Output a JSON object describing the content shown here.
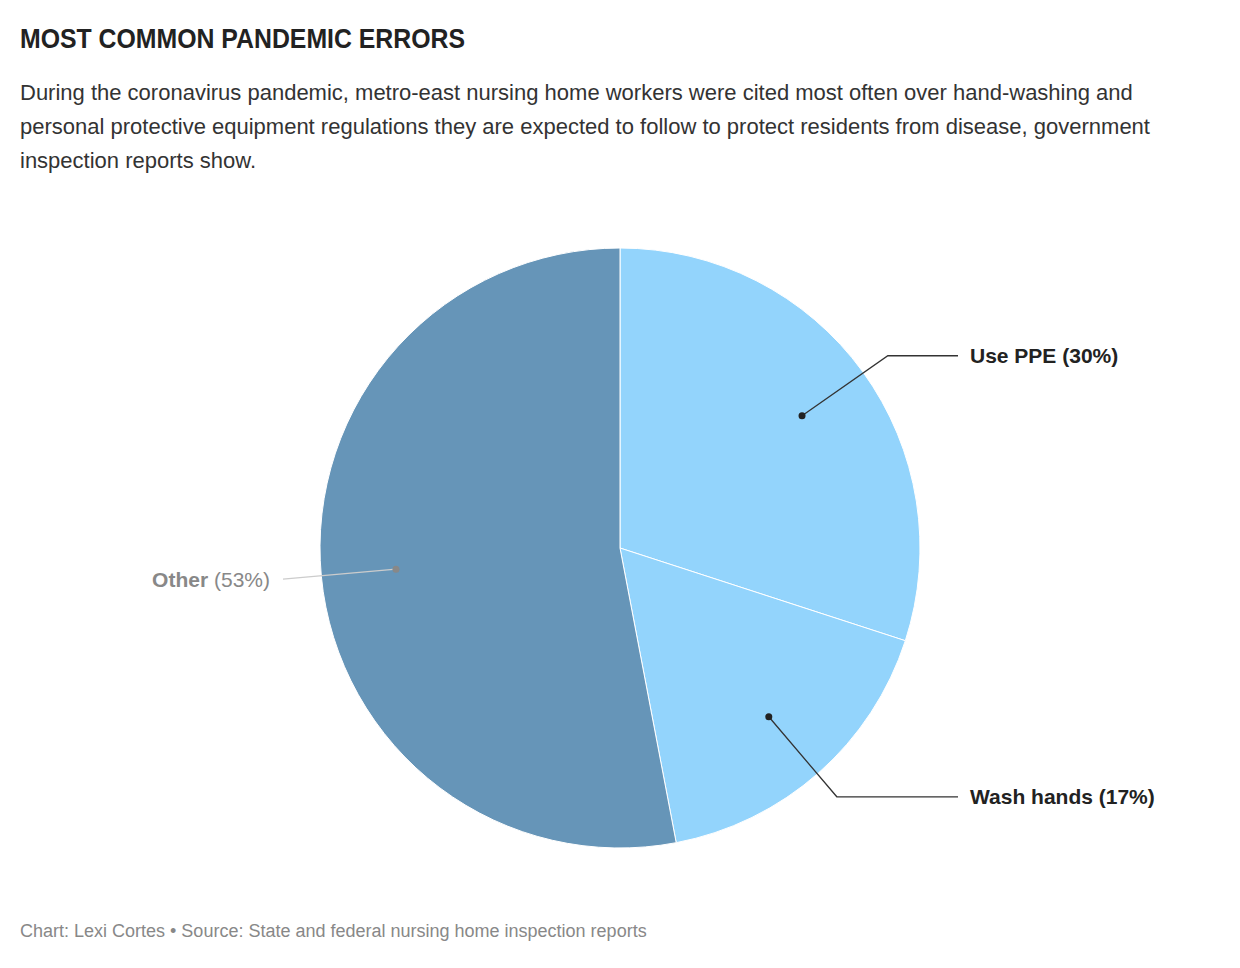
{
  "chart_data": {
    "type": "pie",
    "title": "MOST COMMON PANDEMIC ERRORS",
    "subtitle": "During the coronavirus pandemic, metro-east nursing home workers were cited most often over hand-washing and personal protective equipment regulations they are expected to follow to protect residents from disease, government inspection reports show.",
    "categories": [
      "Use PPE",
      "Wash hands",
      "Other"
    ],
    "values": [
      30,
      17,
      53
    ],
    "value_labels": [
      "(30%)",
      "(17%)",
      "(53%)"
    ],
    "colors": [
      "#93d4fc",
      "#93d4fc",
      "#6695b8"
    ],
    "data_labels": true,
    "source": "Chart: Lexi Cortes • Source: State and federal nursing home inspection reports"
  }
}
